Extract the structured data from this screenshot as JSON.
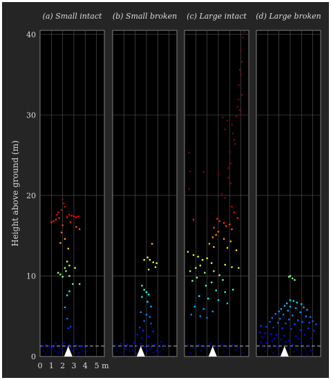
{
  "chart_data": {
    "type": "scatter",
    "background": "#252525",
    "panel_background": "#000000",
    "grid": true,
    "grid_color": "#5a5a5a",
    "reference_line": {
      "y": 1.3,
      "style": "dashed",
      "color": "#bbbbbb"
    },
    "marker": {
      "shape": "triangle",
      "x": 2.5,
      "y": 0,
      "color": "#ffffff"
    },
    "ylabel": "Height above ground (m)",
    "ylim": [
      0,
      40.5
    ],
    "yticks": [
      "0",
      "10",
      "20",
      "30",
      "40"
    ],
    "xlim": [
      0,
      5.7
    ],
    "xticks": [
      "0",
      "1",
      "2",
      "3",
      "4",
      "5 m"
    ],
    "colormap": "jet",
    "panels": [
      {
        "title": "(a) Small intact",
        "points": [
          [
            1.0,
            16.7
          ],
          [
            1.2,
            16.8
          ],
          [
            1.4,
            17.0
          ],
          [
            1.5,
            17.6
          ],
          [
            1.6,
            17.9
          ],
          [
            1.7,
            17.2
          ],
          [
            1.9,
            18.2
          ],
          [
            2.0,
            19.5
          ],
          [
            2.1,
            19.0
          ],
          [
            2.2,
            18.6
          ],
          [
            2.4,
            17.3
          ],
          [
            2.6,
            17.6
          ],
          [
            2.8,
            17.5
          ],
          [
            3.0,
            17.4
          ],
          [
            3.2,
            17.3
          ],
          [
            3.4,
            17.4
          ],
          [
            3.2,
            16.1
          ],
          [
            3.5,
            15.8
          ],
          [
            2.7,
            16.7
          ],
          [
            2.0,
            16.3
          ],
          [
            1.9,
            15.4
          ],
          [
            1.8,
            14.1
          ],
          [
            2.2,
            14.6
          ],
          [
            2.5,
            13.4
          ],
          [
            2.4,
            11.8
          ],
          [
            2.6,
            11.3
          ],
          [
            2.2,
            11.0
          ],
          [
            2.3,
            10.6
          ],
          [
            1.8,
            10.2
          ],
          [
            1.6,
            10.4
          ],
          [
            2.0,
            9.9
          ],
          [
            2.6,
            10.0
          ],
          [
            2.9,
            9.0
          ],
          [
            3.5,
            9.0
          ],
          [
            3.1,
            11.0
          ],
          [
            2.6,
            8.1
          ],
          [
            2.4,
            7.6
          ],
          [
            2.2,
            6.1
          ],
          [
            2.4,
            4.7
          ],
          [
            2.7,
            3.7
          ],
          [
            2.5,
            3.5
          ],
          [
            0.2,
            1.2
          ],
          [
            0.5,
            1.5
          ],
          [
            0.8,
            1.3
          ],
          [
            1.1,
            1.2
          ],
          [
            1.4,
            1.6
          ],
          [
            1.7,
            1.1
          ],
          [
            1.9,
            1.4
          ],
          [
            2.1,
            1.7
          ],
          [
            2.3,
            1.2
          ],
          [
            2.6,
            1.5
          ],
          [
            2.8,
            1.1
          ],
          [
            3.0,
            1.6
          ],
          [
            3.3,
            1.4
          ],
          [
            3.6,
            1.2
          ],
          [
            3.9,
            1.3
          ],
          [
            0.3,
            0.7
          ],
          [
            0.7,
            0.6
          ],
          [
            1.0,
            0.9
          ],
          [
            1.3,
            0.7
          ],
          [
            1.6,
            0.5
          ],
          [
            2.0,
            0.8
          ],
          [
            2.9,
            0.7
          ],
          [
            3.2,
            0.9
          ],
          [
            3.5,
            0.5
          ],
          [
            3.8,
            0.8
          ],
          [
            4.1,
            0.6
          ],
          [
            0.5,
            0.3
          ],
          [
            1.8,
            0.4
          ],
          [
            3.4,
            0.3
          ]
        ]
      },
      {
        "title": "(b) Small broken",
        "points": [
          [
            3.5,
            14.0
          ],
          [
            2.8,
            12.0
          ],
          [
            3.1,
            12.3
          ],
          [
            3.3,
            12.0
          ],
          [
            3.6,
            11.7
          ],
          [
            3.8,
            11.1
          ],
          [
            3.9,
            11.6
          ],
          [
            3.2,
            10.8
          ],
          [
            2.6,
            8.8
          ],
          [
            2.8,
            8.3
          ],
          [
            3.0,
            8.0
          ],
          [
            3.2,
            7.7
          ],
          [
            2.6,
            7.4
          ],
          [
            3.1,
            6.8
          ],
          [
            3.4,
            6.2
          ],
          [
            2.5,
            5.5
          ],
          [
            3.0,
            5.2
          ],
          [
            3.3,
            4.9
          ],
          [
            2.8,
            4.4
          ],
          [
            3.4,
            4.1
          ],
          [
            2.4,
            3.6
          ],
          [
            2.7,
            3.2
          ],
          [
            3.6,
            3.1
          ],
          [
            2.2,
            2.7
          ],
          [
            2.6,
            2.3
          ],
          [
            3.2,
            2.5
          ],
          [
            0.3,
            1.3
          ],
          [
            0.7,
            1.6
          ],
          [
            1.0,
            1.2
          ],
          [
            1.3,
            1.5
          ],
          [
            1.6,
            1.2
          ],
          [
            1.9,
            1.7
          ],
          [
            2.2,
            1.3
          ],
          [
            2.5,
            1.6
          ],
          [
            2.8,
            1.2
          ],
          [
            3.1,
            1.4
          ],
          [
            3.4,
            1.1
          ],
          [
            3.7,
            1.5
          ],
          [
            4.0,
            1.3
          ],
          [
            4.3,
            1.8
          ],
          [
            4.6,
            1.4
          ],
          [
            0.4,
            0.7
          ],
          [
            0.8,
            0.5
          ],
          [
            1.2,
            0.9
          ],
          [
            1.5,
            0.6
          ],
          [
            1.8,
            0.8
          ],
          [
            2.1,
            0.4
          ],
          [
            3.0,
            0.7
          ],
          [
            3.3,
            0.9
          ],
          [
            3.6,
            0.5
          ],
          [
            3.9,
            0.8
          ],
          [
            4.2,
            0.6
          ],
          [
            4.5,
            0.9
          ],
          [
            1.0,
            0.3
          ],
          [
            4.0,
            0.3
          ]
        ]
      },
      {
        "title": "(c) Large intact",
        "points": [
          [
            5.3,
            40.3
          ],
          [
            5.2,
            39.6
          ],
          [
            5.0,
            38.0
          ],
          [
            5.1,
            36.6
          ],
          [
            4.9,
            35.6
          ],
          [
            5.0,
            35.0
          ],
          [
            4.8,
            33.7
          ],
          [
            5.1,
            32.5
          ],
          [
            4.8,
            31.9
          ],
          [
            4.7,
            31.0
          ],
          [
            4.9,
            30.6
          ],
          [
            5.0,
            30.0
          ],
          [
            4.6,
            29.8
          ],
          [
            3.4,
            29.7
          ],
          [
            3.8,
            29.3
          ],
          [
            4.2,
            28.8
          ],
          [
            3.6,
            28.2
          ],
          [
            4.3,
            27.7
          ],
          [
            4.4,
            26.9
          ],
          [
            4.5,
            26.4
          ],
          [
            4.0,
            25.4
          ],
          [
            0.4,
            25.3
          ],
          [
            4.1,
            24.0
          ],
          [
            3.9,
            23.4
          ],
          [
            0.5,
            23.0
          ],
          [
            1.7,
            22.9
          ],
          [
            3.0,
            22.6
          ],
          [
            3.9,
            22.2
          ],
          [
            4.1,
            21.5
          ],
          [
            0.4,
            20.8
          ],
          [
            3.3,
            20.2
          ],
          [
            3.6,
            19.7
          ],
          [
            4.2,
            18.6
          ],
          [
            4.4,
            17.9
          ],
          [
            4.7,
            17.2
          ],
          [
            0.8,
            17.0
          ],
          [
            2.9,
            17.1
          ],
          [
            3.1,
            16.8
          ],
          [
            3.5,
            16.6
          ],
          [
            3.7,
            16.2
          ],
          [
            4.0,
            16.4
          ],
          [
            4.2,
            15.8
          ],
          [
            2.6,
            16.0
          ],
          [
            3.0,
            15.5
          ],
          [
            2.8,
            15.1
          ],
          [
            2.5,
            14.8
          ],
          [
            3.5,
            14.6
          ],
          [
            4.1,
            14.3
          ],
          [
            2.2,
            14.0
          ],
          [
            2.6,
            13.6
          ],
          [
            3.8,
            13.5
          ],
          [
            4.6,
            13.2
          ],
          [
            0.3,
            13.0
          ],
          [
            0.8,
            12.6
          ],
          [
            1.2,
            12.4
          ],
          [
            1.6,
            12.0
          ],
          [
            2.0,
            12.2
          ],
          [
            2.4,
            11.6
          ],
          [
            1.4,
            11.3
          ],
          [
            1.0,
            11.0
          ],
          [
            3.6,
            11.4
          ],
          [
            4.2,
            11.1
          ],
          [
            4.8,
            11.0
          ],
          [
            0.5,
            10.6
          ],
          [
            1.8,
            10.4
          ],
          [
            2.6,
            10.6
          ],
          [
            3.1,
            10.1
          ],
          [
            1.1,
            9.8
          ],
          [
            0.7,
            9.4
          ],
          [
            2.4,
            9.2
          ],
          [
            3.4,
            9.5
          ],
          [
            1.9,
            8.8
          ],
          [
            2.8,
            8.2
          ],
          [
            3.6,
            8.0
          ],
          [
            4.3,
            8.3
          ],
          [
            1.3,
            7.5
          ],
          [
            2.1,
            7.2
          ],
          [
            3.0,
            7.0
          ],
          [
            3.8,
            6.6
          ],
          [
            0.9,
            6.2
          ],
          [
            1.7,
            5.9
          ],
          [
            2.5,
            5.6
          ],
          [
            0.6,
            5.2
          ],
          [
            1.4,
            5.0
          ],
          [
            2.0,
            4.8
          ],
          [
            0.3,
            1.4
          ],
          [
            0.8,
            1.1
          ],
          [
            1.3,
            1.5
          ],
          [
            1.8,
            1.2
          ],
          [
            2.3,
            1.6
          ],
          [
            2.8,
            1.3
          ],
          [
            3.3,
            1.5
          ],
          [
            3.8,
            1.2
          ],
          [
            4.3,
            1.4
          ],
          [
            4.8,
            1.1
          ],
          [
            0.5,
            0.5
          ],
          [
            1.5,
            0.7
          ],
          [
            3.5,
            0.6
          ],
          [
            4.5,
            0.8
          ],
          [
            5.2,
            0.5
          ]
        ]
      },
      {
        "title": "(d) Large broken",
        "points": [
          [
            3.0,
            10.0
          ],
          [
            3.2,
            9.7
          ],
          [
            3.4,
            9.5
          ],
          [
            2.9,
            9.9
          ],
          [
            3.0,
            7.0
          ],
          [
            3.3,
            6.9
          ],
          [
            3.6,
            6.7
          ],
          [
            2.7,
            6.6
          ],
          [
            4.0,
            6.5
          ],
          [
            2.5,
            6.3
          ],
          [
            3.0,
            6.2
          ],
          [
            3.5,
            6.0
          ],
          [
            4.2,
            6.1
          ],
          [
            2.2,
            5.9
          ],
          [
            4.5,
            5.8
          ],
          [
            2.0,
            5.6
          ],
          [
            2.8,
            5.7
          ],
          [
            3.9,
            5.5
          ],
          [
            1.7,
            5.3
          ],
          [
            2.4,
            5.2
          ],
          [
            3.2,
            5.1
          ],
          [
            4.4,
            5.0
          ],
          [
            4.8,
            4.9
          ],
          [
            1.4,
            4.8
          ],
          [
            2.1,
            4.7
          ],
          [
            2.9,
            4.6
          ],
          [
            3.7,
            4.5
          ],
          [
            5.0,
            4.4
          ],
          [
            1.2,
            4.3
          ],
          [
            1.9,
            4.2
          ],
          [
            2.6,
            4.1
          ],
          [
            3.4,
            4.0
          ],
          [
            4.1,
            4.3
          ],
          [
            4.7,
            4.2
          ],
          [
            5.3,
            4.0
          ],
          [
            0.4,
            3.8
          ],
          [
            0.9,
            3.7
          ],
          [
            1.5,
            3.6
          ],
          [
            2.3,
            3.5
          ],
          [
            3.1,
            3.4
          ],
          [
            3.9,
            3.3
          ],
          [
            4.6,
            3.5
          ],
          [
            5.1,
            3.2
          ],
          [
            0.3,
            3.0
          ],
          [
            0.8,
            2.9
          ],
          [
            1.3,
            2.8
          ],
          [
            1.8,
            2.7
          ],
          [
            2.5,
            2.6
          ],
          [
            3.5,
            2.5
          ],
          [
            4.3,
            2.7
          ],
          [
            0.5,
            2.4
          ],
          [
            1.0,
            2.3
          ],
          [
            1.6,
            2.2
          ],
          [
            2.2,
            2.1
          ],
          [
            2.9,
            2.0
          ],
          [
            3.8,
            2.2
          ],
          [
            4.9,
            2.3
          ],
          [
            0.4,
            1.8
          ],
          [
            0.9,
            1.7
          ],
          [
            1.4,
            1.9
          ],
          [
            2.0,
            1.6
          ],
          [
            2.6,
            1.8
          ],
          [
            3.2,
            1.5
          ],
          [
            4.0,
            1.7
          ],
          [
            4.6,
            1.4
          ],
          [
            0.6,
            1.2
          ],
          [
            1.2,
            1.1
          ],
          [
            1.8,
            1.3
          ],
          [
            2.4,
            1.0
          ],
          [
            3.0,
            1.2
          ],
          [
            3.6,
            0.9
          ],
          [
            4.2,
            1.1
          ],
          [
            4.8,
            0.8
          ],
          [
            0.8,
            0.6
          ],
          [
            1.5,
            0.5
          ],
          [
            3.3,
            0.6
          ],
          [
            4.0,
            0.4
          ],
          [
            5.0,
            0.6
          ],
          [
            2.2,
            0.3
          ],
          [
            4.5,
            0.3
          ]
        ]
      }
    ]
  }
}
